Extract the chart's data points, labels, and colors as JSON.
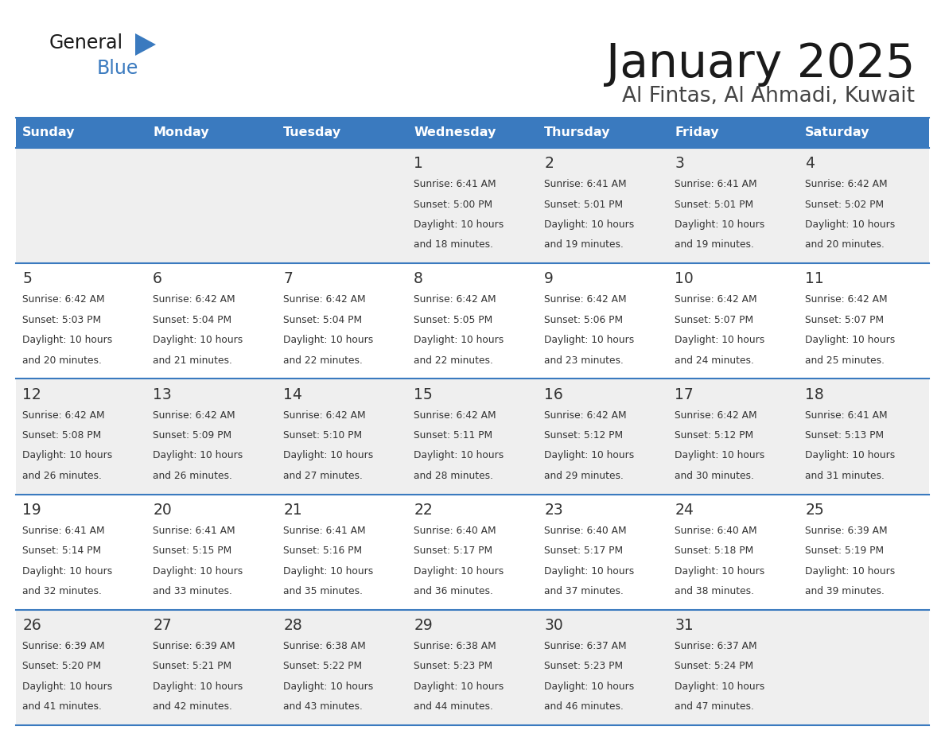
{
  "title": "January 2025",
  "subtitle": "Al Fintas, Al Ahmadi, Kuwait",
  "header_bg": "#3a7abf",
  "header_text_color": "#ffffff",
  "day_names": [
    "Sunday",
    "Monday",
    "Tuesday",
    "Wednesday",
    "Thursday",
    "Friday",
    "Saturday"
  ],
  "row_bg_odd": "#efefef",
  "row_bg_even": "#ffffff",
  "cell_border_color": "#3a7abf",
  "date_color": "#333333",
  "info_color": "#333333",
  "calendar": [
    [
      {
        "day": null
      },
      {
        "day": null
      },
      {
        "day": null
      },
      {
        "day": 1,
        "sunrise": "6:41 AM",
        "sunset": "5:00 PM",
        "daylight": "10 hours and 18 minutes."
      },
      {
        "day": 2,
        "sunrise": "6:41 AM",
        "sunset": "5:01 PM",
        "daylight": "10 hours and 19 minutes."
      },
      {
        "day": 3,
        "sunrise": "6:41 AM",
        "sunset": "5:01 PM",
        "daylight": "10 hours and 19 minutes."
      },
      {
        "day": 4,
        "sunrise": "6:42 AM",
        "sunset": "5:02 PM",
        "daylight": "10 hours and 20 minutes."
      }
    ],
    [
      {
        "day": 5,
        "sunrise": "6:42 AM",
        "sunset": "5:03 PM",
        "daylight": "10 hours and 20 minutes."
      },
      {
        "day": 6,
        "sunrise": "6:42 AM",
        "sunset": "5:04 PM",
        "daylight": "10 hours and 21 minutes."
      },
      {
        "day": 7,
        "sunrise": "6:42 AM",
        "sunset": "5:04 PM",
        "daylight": "10 hours and 22 minutes."
      },
      {
        "day": 8,
        "sunrise": "6:42 AM",
        "sunset": "5:05 PM",
        "daylight": "10 hours and 22 minutes."
      },
      {
        "day": 9,
        "sunrise": "6:42 AM",
        "sunset": "5:06 PM",
        "daylight": "10 hours and 23 minutes."
      },
      {
        "day": 10,
        "sunrise": "6:42 AM",
        "sunset": "5:07 PM",
        "daylight": "10 hours and 24 minutes."
      },
      {
        "day": 11,
        "sunrise": "6:42 AM",
        "sunset": "5:07 PM",
        "daylight": "10 hours and 25 minutes."
      }
    ],
    [
      {
        "day": 12,
        "sunrise": "6:42 AM",
        "sunset": "5:08 PM",
        "daylight": "10 hours and 26 minutes."
      },
      {
        "day": 13,
        "sunrise": "6:42 AM",
        "sunset": "5:09 PM",
        "daylight": "10 hours and 26 minutes."
      },
      {
        "day": 14,
        "sunrise": "6:42 AM",
        "sunset": "5:10 PM",
        "daylight": "10 hours and 27 minutes."
      },
      {
        "day": 15,
        "sunrise": "6:42 AM",
        "sunset": "5:11 PM",
        "daylight": "10 hours and 28 minutes."
      },
      {
        "day": 16,
        "sunrise": "6:42 AM",
        "sunset": "5:12 PM",
        "daylight": "10 hours and 29 minutes."
      },
      {
        "day": 17,
        "sunrise": "6:42 AM",
        "sunset": "5:12 PM",
        "daylight": "10 hours and 30 minutes."
      },
      {
        "day": 18,
        "sunrise": "6:41 AM",
        "sunset": "5:13 PM",
        "daylight": "10 hours and 31 minutes."
      }
    ],
    [
      {
        "day": 19,
        "sunrise": "6:41 AM",
        "sunset": "5:14 PM",
        "daylight": "10 hours and 32 minutes."
      },
      {
        "day": 20,
        "sunrise": "6:41 AM",
        "sunset": "5:15 PM",
        "daylight": "10 hours and 33 minutes."
      },
      {
        "day": 21,
        "sunrise": "6:41 AM",
        "sunset": "5:16 PM",
        "daylight": "10 hours and 35 minutes."
      },
      {
        "day": 22,
        "sunrise": "6:40 AM",
        "sunset": "5:17 PM",
        "daylight": "10 hours and 36 minutes."
      },
      {
        "day": 23,
        "sunrise": "6:40 AM",
        "sunset": "5:17 PM",
        "daylight": "10 hours and 37 minutes."
      },
      {
        "day": 24,
        "sunrise": "6:40 AM",
        "sunset": "5:18 PM",
        "daylight": "10 hours and 38 minutes."
      },
      {
        "day": 25,
        "sunrise": "6:39 AM",
        "sunset": "5:19 PM",
        "daylight": "10 hours and 39 minutes."
      }
    ],
    [
      {
        "day": 26,
        "sunrise": "6:39 AM",
        "sunset": "5:20 PM",
        "daylight": "10 hours and 41 minutes."
      },
      {
        "day": 27,
        "sunrise": "6:39 AM",
        "sunset": "5:21 PM",
        "daylight": "10 hours and 42 minutes."
      },
      {
        "day": 28,
        "sunrise": "6:38 AM",
        "sunset": "5:22 PM",
        "daylight": "10 hours and 43 minutes."
      },
      {
        "day": 29,
        "sunrise": "6:38 AM",
        "sunset": "5:23 PM",
        "daylight": "10 hours and 44 minutes."
      },
      {
        "day": 30,
        "sunrise": "6:37 AM",
        "sunset": "5:23 PM",
        "daylight": "10 hours and 46 minutes."
      },
      {
        "day": 31,
        "sunrise": "6:37 AM",
        "sunset": "5:24 PM",
        "daylight": "10 hours and 47 minutes."
      },
      {
        "day": null
      }
    ]
  ]
}
